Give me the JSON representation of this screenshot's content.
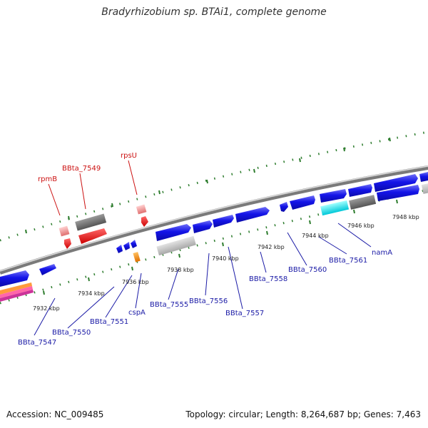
{
  "header": {
    "title": "Bradyrhizobium sp. BTAi1, complete genome"
  },
  "footer": {
    "accession": "Accession: NC_009485",
    "topology": "Topology: circular; Length: 8,264,687 bp; Genes: 7,463"
  },
  "colors": {
    "gene_label_blue": "#1a1aa6",
    "gene_label_red": "#cc1111",
    "tick_green": "#2e7d2e",
    "backbone_gray": "#888888",
    "cds_blue": "#1010e0",
    "rna_red": "#ee1111"
  },
  "scale_labels": [
    "7932 kbp",
    "7934 kbp",
    "7936 kbp",
    "7938 kbp",
    "7940 kbp",
    "7942 kbp",
    "7944 kbp",
    "7946 kbp",
    "7948 kbp"
  ],
  "gene_labels_outer": [
    "rpmB",
    "BBta_7549",
    "rpsU"
  ],
  "gene_labels_inner": [
    "BBta_7547",
    "BBta_7550",
    "BBta_7551",
    "cspA",
    "BBta_7555",
    "BBta_7556",
    "BBta_7557",
    "BBta_7558",
    "BBta_7560",
    "BBta_7561",
    "namA"
  ]
}
